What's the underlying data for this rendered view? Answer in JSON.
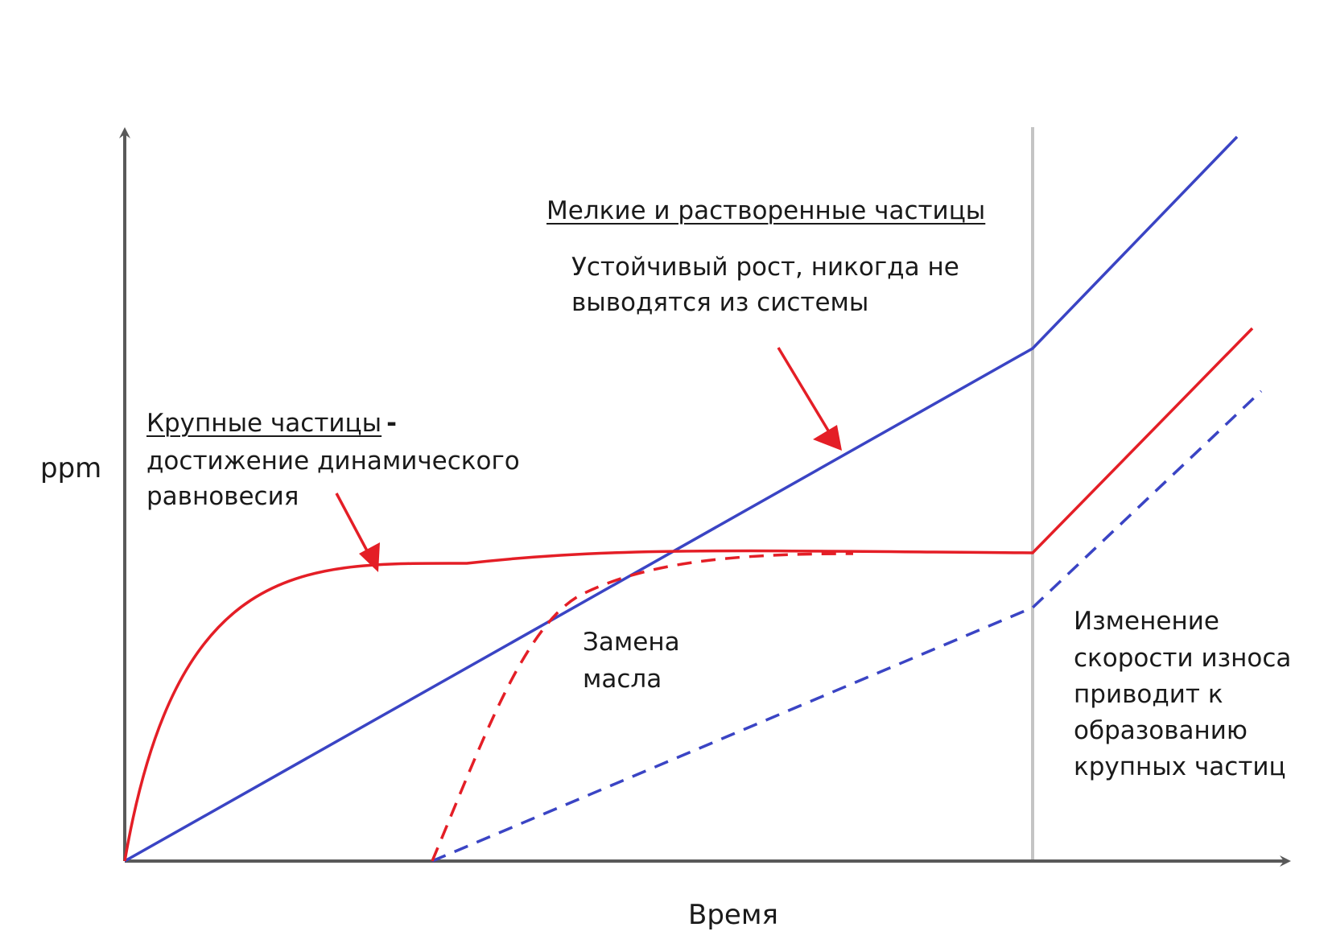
{
  "labels": {
    "y_axis": "ppm",
    "x_axis": "Время",
    "small_title": "Мелкие и растворенные частицы",
    "small_desc_1": "Устойчивый рост, никогда не",
    "small_desc_2": "выводятся из системы",
    "large_title": "Крупные частицы",
    "large_dash": "-",
    "large_desc_1": "достижение динамического",
    "large_desc_2": "равновесия",
    "oil_change_1": "Замена",
    "oil_change_2": "масла",
    "wear_1": "Изменение",
    "wear_2": "скорости износа",
    "wear_3": "приводит к",
    "wear_4": "образованию",
    "wear_5": "крупных частиц"
  },
  "colors": {
    "axis": "#595959",
    "small_particles": "#3a44c4",
    "large_particles": "#e41e26",
    "arrow": "#e41e26",
    "divider": "#c4c4c4",
    "text": "#1a1a1a"
  }
}
